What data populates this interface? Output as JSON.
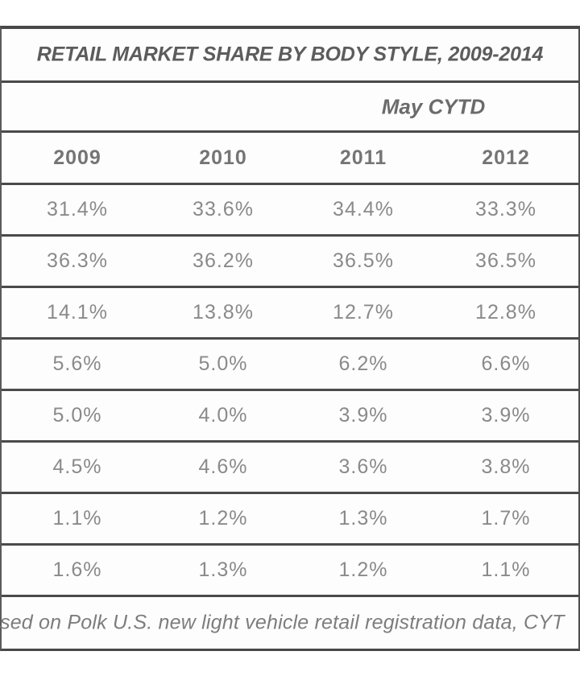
{
  "table": {
    "title": "RETAIL MARKET SHARE BY BODY STYLE, 2009-2014",
    "group_header": "May CYTD",
    "columns": [
      "2009",
      "2010",
      "2011",
      "2012"
    ],
    "cells": [
      [
        "31.4%",
        "33.6%",
        "34.4%",
        "33.3%"
      ],
      [
        "36.3%",
        "36.2%",
        "36.5%",
        "36.5%"
      ],
      [
        "14.1%",
        "13.8%",
        "12.7%",
        "12.8%"
      ],
      [
        "5.6%",
        "5.0%",
        "6.2%",
        "6.6%"
      ],
      [
        "5.0%",
        "4.0%",
        "3.9%",
        "3.9%"
      ],
      [
        "4.5%",
        "4.6%",
        "3.6%",
        "3.8%"
      ],
      [
        "1.1%",
        "1.2%",
        "1.3%",
        "1.7%"
      ],
      [
        "1.6%",
        "1.3%",
        "1.2%",
        "1.1%"
      ]
    ],
    "footnote": "sed on Polk U.S. new light vehicle retail registration data, CYT"
  },
  "chart_data": {
    "type": "table",
    "title": "RETAIL MARKET SHARE BY BODY STYLE, 2009-2014",
    "group_header": "May CYTD",
    "columns": [
      "2009",
      "2010",
      "2011",
      "2012"
    ],
    "unit": "%",
    "rows_pct": [
      [
        31.4,
        33.6,
        34.4,
        33.3
      ],
      [
        36.3,
        36.2,
        36.5,
        36.5
      ],
      [
        14.1,
        13.8,
        12.7,
        12.8
      ],
      [
        5.6,
        5.0,
        6.2,
        6.6
      ],
      [
        5.0,
        4.0,
        3.9,
        3.9
      ],
      [
        4.5,
        4.6,
        3.6,
        3.8
      ],
      [
        1.1,
        1.2,
        1.3,
        1.7
      ],
      [
        1.6,
        1.3,
        1.2,
        1.1
      ]
    ],
    "row_labels_visible": false,
    "footnote_visible_text": "sed on Polk U.S. new light vehicle retail registration data, CYT"
  },
  "colors": {
    "grid_line": "#4a4a4a",
    "title_text": "#5c5c5c",
    "header_text": "#757575",
    "data_text": "#8a8a8a",
    "background": "#ffffff"
  }
}
